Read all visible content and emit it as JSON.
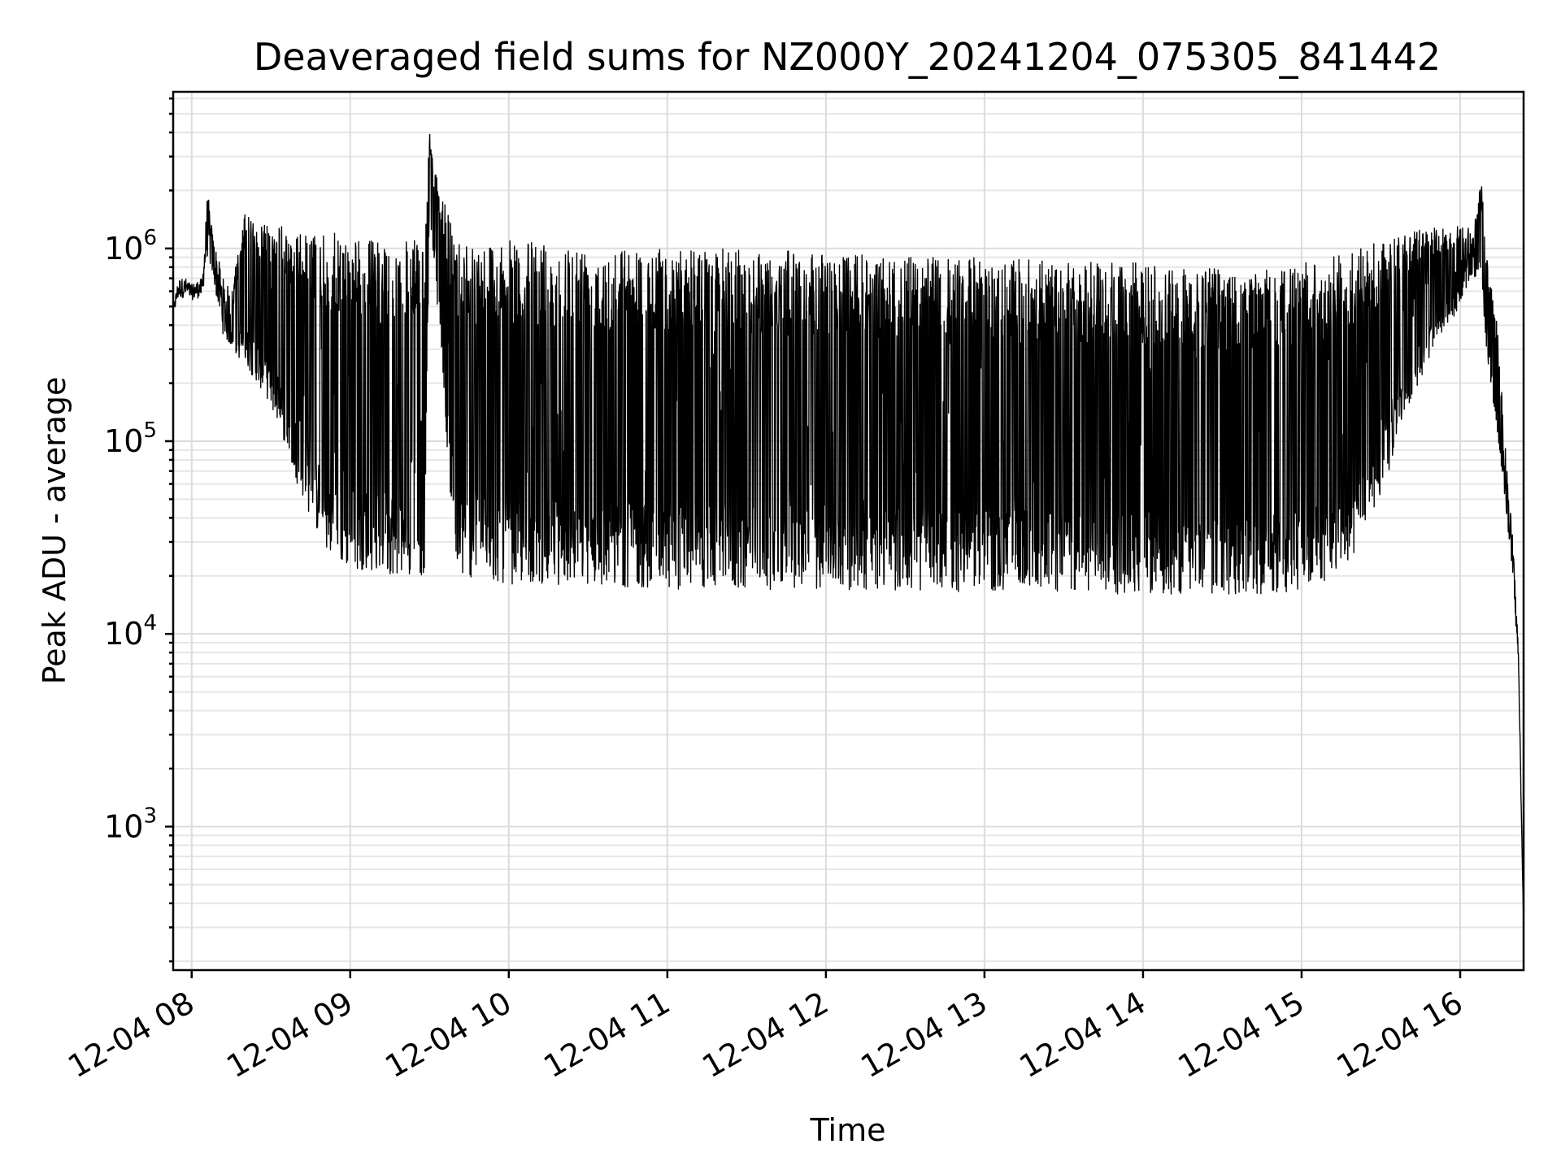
{
  "chart_data": {
    "type": "line",
    "title": "Deaveraged field sums for NZ000Y_20241204_075305_841442",
    "xlabel": "Time",
    "ylabel": "Peak ADU - average",
    "y_scale": "log",
    "ylim": [
      180,
      6500000
    ],
    "xlim": [
      "2024-12-04 07:53",
      "2024-12-04 16:24"
    ],
    "grid": true,
    "x_ticks": [
      "12-04 08",
      "12-04 09",
      "12-04 10",
      "12-04 11",
      "12-04 12",
      "12-04 13",
      "12-04 14",
      "12-04 15",
      "12-04 16"
    ],
    "y_ticks": [
      1000,
      10000,
      100000,
      1000000
    ],
    "y_tick_labels": [
      {
        "base": "10",
        "exp": "3"
      },
      {
        "base": "10",
        "exp": "4"
      },
      {
        "base": "10",
        "exp": "5"
      },
      {
        "base": "10",
        "exp": "6"
      }
    ],
    "series": [
      {
        "name": "",
        "color": "#000000",
        "x": [
          "07:53",
          "07:55",
          "07:58",
          "08:00",
          "08:02",
          "08:04",
          "08:06",
          "08:08",
          "08:10",
          "08:12",
          "08:15",
          "08:20",
          "08:25",
          "08:30",
          "08:35",
          "08:40",
          "08:45",
          "08:50",
          "08:55",
          "09:00",
          "09:10",
          "09:20",
          "09:28",
          "09:30",
          "09:32",
          "09:40",
          "09:50",
          "10:00",
          "10:30",
          "11:00",
          "11:30",
          "12:00",
          "12:30",
          "13:00",
          "13:30",
          "14:00",
          "14:30",
          "14:55",
          "15:00",
          "15:10",
          "15:20",
          "15:30",
          "15:40",
          "15:50",
          "16:00",
          "16:05",
          "16:08",
          "16:10",
          "16:14",
          "16:17",
          "16:20",
          "16:22",
          "16:24"
        ],
        "values": [
          450000,
          600000,
          620000,
          580000,
          600000,
          640000,
          1200000,
          1000000,
          700000,
          500000,
          420000,
          380000,
          330000,
          260000,
          200000,
          110000,
          70000,
          45000,
          35000,
          30000,
          28000,
          27000,
          25000,
          3500000,
          1800000,
          26000,
          25000,
          23000,
          23000,
          22000,
          22000,
          21000,
          20000,
          20000,
          19000,
          19000,
          19000,
          19000,
          20000,
          22000,
          30000,
          60000,
          200000,
          400000,
          700000,
          900000,
          950000,
          400000,
          150000,
          60000,
          25000,
          8000,
          300
        ],
        "band_low": [
          450000,
          550000,
          560000,
          540000,
          550000,
          560000,
          900000,
          700000,
          500000,
          350000,
          300000,
          250000,
          200000,
          150000,
          100000,
          60000,
          40000,
          28000,
          23000,
          22000,
          21000,
          20000,
          20000,
          1500000,
          800000,
          20000,
          19000,
          18000,
          18000,
          17000,
          17000,
          17000,
          16500,
          16500,
          16000,
          16000,
          16000,
          16000,
          17000,
          19000,
          25000,
          50000,
          150000,
          300000,
          500000,
          700000,
          700000,
          300000,
          100000,
          50000,
          18000,
          7000,
          300
        ],
        "band_high": [
          500000,
          700000,
          700000,
          650000,
          680000,
          700000,
          2000000,
          1200000,
          900000,
          700000,
          600000,
          1500000,
          1400000,
          1400000,
          1300000,
          1200000,
          1200000,
          1200000,
          1200000,
          1150000,
          1100000,
          1100000,
          1100000,
          4000000,
          2500000,
          1150000,
          1100000,
          1100000,
          1050000,
          1000000,
          1000000,
          950000,
          900000,
          900000,
          850000,
          850000,
          800000,
          800000,
          850000,
          900000,
          1000000,
          1100000,
          1200000,
          1300000,
          1300000,
          1300000,
          2300000,
          900000,
          400000,
          100000,
          30000,
          9000,
          300
        ]
      }
    ]
  }
}
